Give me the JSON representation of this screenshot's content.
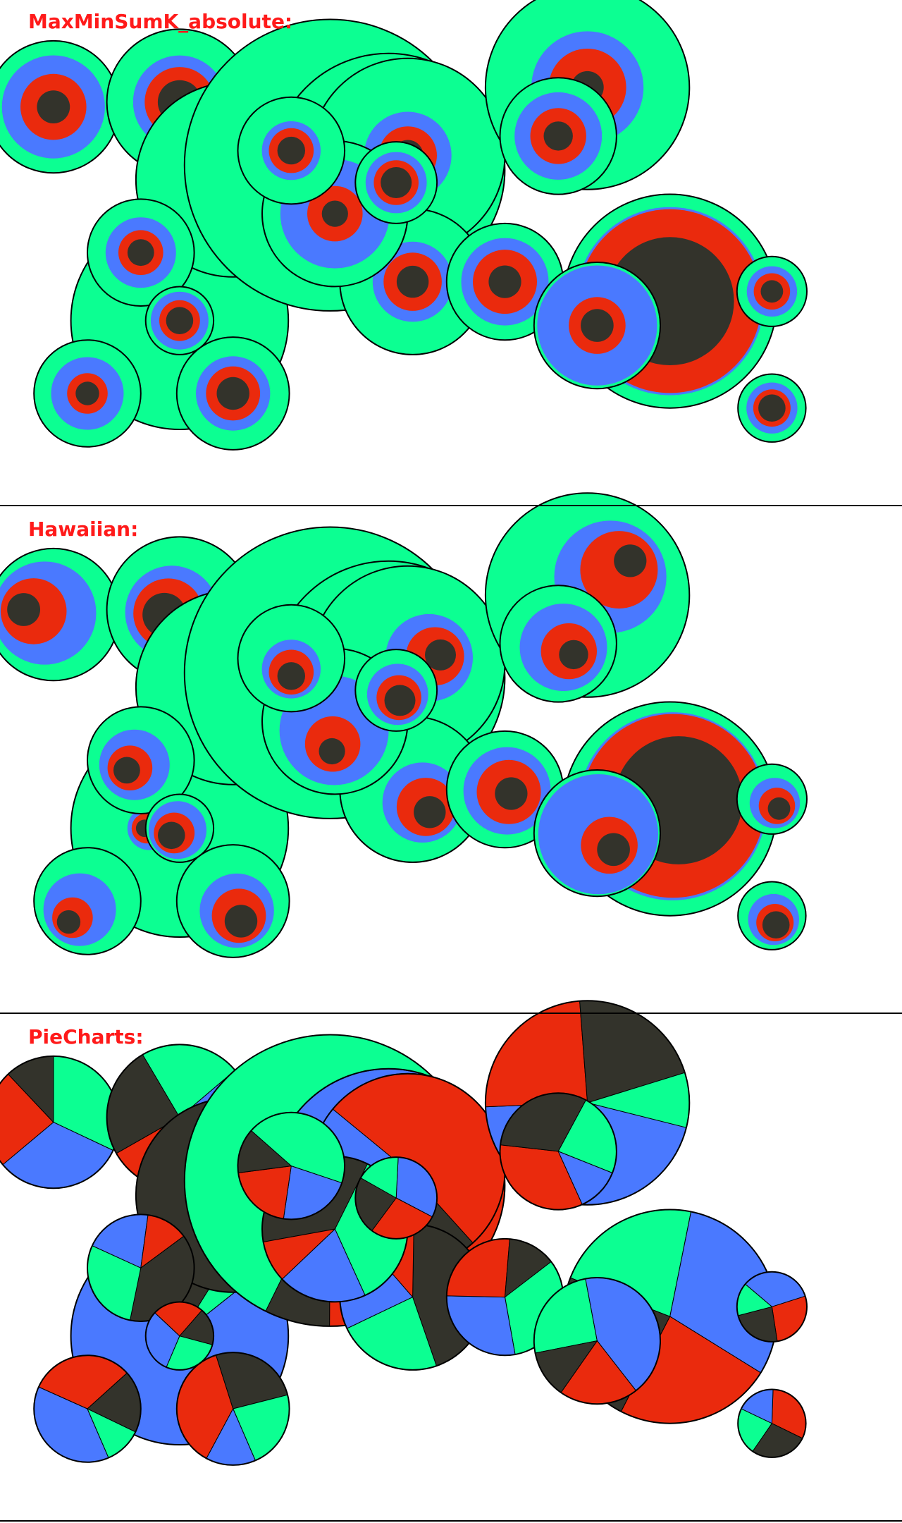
{
  "panels": [
    {
      "title": "MaxMinSumK_absolute:",
      "style": "rings"
    },
    {
      "title": "Hawaiian:",
      "style": "offset-rings"
    },
    {
      "title": "PieCharts:",
      "style": "pie"
    }
  ],
  "colors": {
    "outer": "#0cff92",
    "second": "#4a79ff",
    "third": "#ea2a0d",
    "inner": "#33332b",
    "outline": "#000000",
    "title": "#ff1a1a",
    "background": "#ffffff"
  }
}
